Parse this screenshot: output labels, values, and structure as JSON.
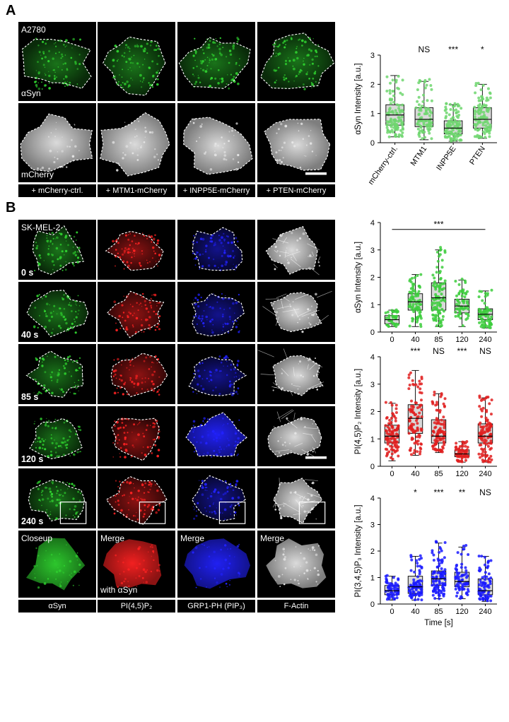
{
  "panel_a": {
    "letter": "A",
    "cell_line": "A2780",
    "row_labels": [
      "αSyn",
      "mCherry"
    ],
    "captions": [
      "+ mCherry-ctrl.",
      "+ MTM1-mCherry",
      "+ INPP5E-mCherry",
      "+ PTEN-mCherry"
    ]
  },
  "panel_b": {
    "letter": "B",
    "cell_line": "SK-MEL-2",
    "times": [
      "0 s",
      "40 s",
      "85 s",
      "120 s",
      "240 s"
    ],
    "closeup_labels": [
      "Closeup",
      "Merge",
      "Merge",
      "Merge"
    ],
    "with_label": "with αSyn",
    "captions": [
      "αSyn",
      "PI(4,5)P₂",
      "GRP1-PH (PIP₃)",
      "F-Actin"
    ]
  },
  "colors": {
    "green": "#3dcc3d",
    "red": "#e02020",
    "blue": "#1a1aff",
    "box": "#d9d9d9"
  },
  "chart_data": [
    {
      "type": "box",
      "ylabel": "αSyn Intensity [a.u.]",
      "categories": [
        "mCherry-ctrl.",
        "MTM1",
        "INPP5E",
        "PTEN"
      ],
      "ylim": [
        0,
        3
      ],
      "yticks": [
        0,
        1,
        2,
        3
      ],
      "significance": [
        "",
        "NS",
        "***",
        "*"
      ],
      "point_color": "#6fd66f",
      "boxes": [
        {
          "min": 0.2,
          "q1": 0.6,
          "median": 0.95,
          "q3": 1.3,
          "max": 2.3,
          "n": 110
        },
        {
          "min": 0.1,
          "q1": 0.55,
          "median": 0.8,
          "q3": 1.2,
          "max": 2.1,
          "n": 90
        },
        {
          "min": 0.05,
          "q1": 0.3,
          "median": 0.5,
          "q3": 0.75,
          "max": 1.3,
          "n": 110
        },
        {
          "min": 0.15,
          "q1": 0.5,
          "median": 0.8,
          "q3": 1.2,
          "max": 2.0,
          "n": 110
        }
      ]
    },
    {
      "type": "box",
      "ylabel": "αSyn Intensity [a.u.]",
      "categories": [
        "0",
        "40",
        "85",
        "120",
        "240"
      ],
      "ylim": [
        0,
        4
      ],
      "yticks": [
        0,
        1,
        2,
        3,
        4
      ],
      "significance_bar": "***",
      "point_color": "#3dcc3d",
      "boxes": [
        {
          "min": 0.2,
          "q1": 0.3,
          "median": 0.45,
          "q3": 0.6,
          "max": 0.8,
          "n": 40
        },
        {
          "min": 0.2,
          "q1": 0.8,
          "median": 1.1,
          "q3": 1.4,
          "max": 2.1,
          "n": 80
        },
        {
          "min": 0.2,
          "q1": 0.8,
          "median": 1.25,
          "q3": 1.8,
          "max": 3.0,
          "n": 100
        },
        {
          "min": 0.2,
          "q1": 0.7,
          "median": 0.95,
          "q3": 1.2,
          "max": 1.9,
          "n": 60
        },
        {
          "min": 0.15,
          "q1": 0.45,
          "median": 0.65,
          "q3": 0.85,
          "max": 1.5,
          "n": 70
        }
      ]
    },
    {
      "type": "box",
      "ylabel": "PI(4,5)P₂ Intensity [a.u.]",
      "categories": [
        "0",
        "40",
        "85",
        "120",
        "240"
      ],
      "ylim": [
        0,
        4
      ],
      "yticks": [
        0,
        1,
        2,
        3,
        4
      ],
      "significance": [
        "",
        "***",
        "NS",
        "***",
        "NS"
      ],
      "point_color": "#e02020",
      "boxes": [
        {
          "min": 0.2,
          "q1": 0.85,
          "median": 1.1,
          "q3": 1.5,
          "max": 2.3,
          "n": 100
        },
        {
          "min": 0.4,
          "q1": 1.2,
          "median": 1.75,
          "q3": 2.25,
          "max": 3.5,
          "n": 100
        },
        {
          "min": 0.5,
          "q1": 0.85,
          "median": 1.1,
          "q3": 1.7,
          "max": 2.65,
          "n": 100
        },
        {
          "min": 0.15,
          "q1": 0.35,
          "median": 0.45,
          "q3": 0.6,
          "max": 0.9,
          "n": 70
        },
        {
          "min": 0.15,
          "q1": 0.85,
          "median": 1.1,
          "q3": 1.55,
          "max": 2.5,
          "n": 110
        }
      ]
    },
    {
      "type": "box",
      "ylabel": "PI(3,4,5)P₃ Intensity [a.u.]",
      "xlabel": "Time [s]",
      "categories": [
        "0",
        "40",
        "85",
        "120",
        "240"
      ],
      "ylim": [
        0,
        4
      ],
      "yticks": [
        0,
        1,
        2,
        3,
        4
      ],
      "significance": [
        "",
        "*",
        "***",
        "**",
        "NS"
      ],
      "point_color": "#1a1aff",
      "boxes": [
        {
          "min": 0.15,
          "q1": 0.35,
          "median": 0.5,
          "q3": 0.7,
          "max": 1.05,
          "n": 60
        },
        {
          "min": 0.15,
          "q1": 0.4,
          "median": 0.65,
          "q3": 1.05,
          "max": 1.8,
          "n": 80
        },
        {
          "min": 0.2,
          "q1": 0.7,
          "median": 0.95,
          "q3": 1.25,
          "max": 2.3,
          "n": 100
        },
        {
          "min": 0.2,
          "q1": 0.65,
          "median": 0.85,
          "q3": 1.2,
          "max": 2.15,
          "n": 70
        },
        {
          "min": 0.1,
          "q1": 0.35,
          "median": 0.5,
          "q3": 0.95,
          "max": 1.8,
          "n": 80
        }
      ]
    }
  ]
}
